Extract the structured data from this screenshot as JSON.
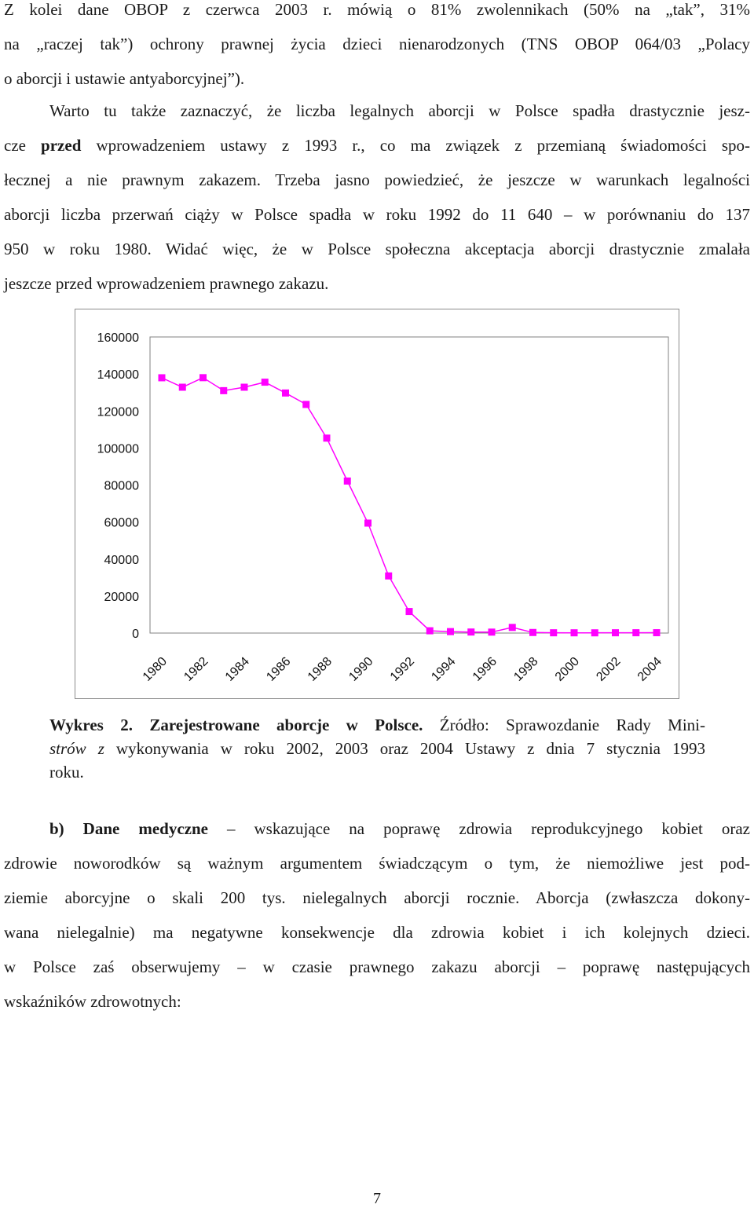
{
  "paragraph1": {
    "lines": [
      "Z kolei dane OBOP z czerwca 2003 r. mówią o 81% zwolennikach (50% na „tak”, 31%",
      "na „raczej tak”) ochrony prawnej życia dzieci nienarodzonych (TNS OBOP 064/03 „Polacy",
      "o aborcji i ustawie antyaborcyjnej”)."
    ]
  },
  "paragraph2": {
    "line1": "Warto tu także zaznaczyć, że liczba legalnych aborcji w Polsce spadła drastycznie jesz-",
    "line2_pre": "cze ",
    "line2_bold": "przed",
    "line2_post": " wprowadzeniem ustawy z 1993 r., co ma związek z przemianą świadomości spo-",
    "lines_rest": [
      "łecznej a nie prawnym zakazem. Trzeba jasno powiedzieć, że jeszcze w warunkach legalności",
      "aborcji liczba przerwań ciąży w Polsce spadła w roku 1992 do 11 640 – w porównaniu do 137",
      "950 w roku 1980. Widać więc, że w Polsce społeczna akceptacja aborcji drastycznie zmalała",
      "jeszcze przed wprowadzeniem prawnego zakazu."
    ]
  },
  "chart_data": {
    "type": "line",
    "x": [
      1980,
      1981,
      1982,
      1983,
      1984,
      1985,
      1986,
      1987,
      1988,
      1989,
      1990,
      1991,
      1992,
      1993,
      1994,
      1995,
      1996,
      1997,
      1998,
      1999,
      2000,
      2001,
      2002,
      2003,
      2004
    ],
    "x_tick_labels": [
      "1980",
      "1982",
      "1984",
      "1986",
      "1988",
      "1990",
      "1992",
      "1994",
      "1996",
      "1998",
      "2000",
      "2002",
      "2004"
    ],
    "y_tick_labels": [
      "160000",
      "140000",
      "120000",
      "100000",
      "80000",
      "60000",
      "40000",
      "20000",
      "0"
    ],
    "ylim": [
      0,
      160000
    ],
    "series": [
      {
        "values": [
          137950,
          132844,
          138000,
          130980,
          132844,
          135564,
          129720,
          123534,
          105333,
          82137,
          59417,
          30878,
          11640,
          1240,
          782,
          559,
          505,
          3047,
          310,
          151,
          138,
          124,
          159,
          174,
          193
        ]
      }
    ],
    "line_color": "#ff00ff",
    "marker_color": "#ff00ff",
    "plot_background": "#ffffff",
    "grid": false,
    "legend": false
  },
  "caption": {
    "bold": "Wykres 2. Zarejestrowane aborcje w Polsce.",
    "line1_after": " Źródło: Sprawozdanie Rady Mini-",
    "line2_italic": "strów z",
    "line2_after": " wykonywania w roku 2002, 2003 oraz 2004 Ustawy z dnia 7 stycznia 1993",
    "line3": "roku."
  },
  "paragraph3": {
    "bold": "b) Dane medyczne",
    "line1_after": " – wskazujące na poprawę zdrowia reprodukcyjnego kobiet oraz",
    "lines_rest": [
      "zdrowie noworodków są ważnym argumentem świadczącym o tym, że niemożliwe jest pod-",
      "ziemie aborcyjne o skali 200 tys. nielegalnych aborcji rocznie. Aborcja (zwłaszcza dokony-",
      "wana nielegalnie) ma negatywne konsekwencje dla zdrowia kobiet i ich kolejnych dzieci.",
      "w Polsce zaś obserwujemy – w czasie prawnego zakazu aborcji – poprawę następujących",
      "wskaźników zdrowotnych:"
    ]
  },
  "page_number": "7"
}
